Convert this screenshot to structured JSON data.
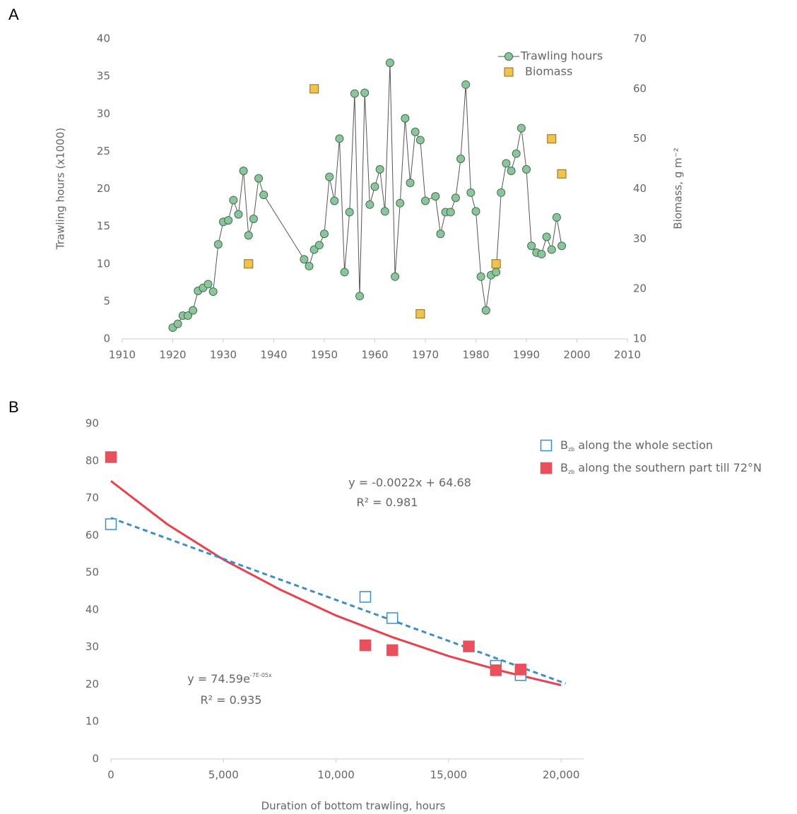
{
  "chart_data": [
    {
      "type": "line",
      "panel_label": "A",
      "y_label": "Trawling hours (x1000)",
      "y2_label": "Biomass, g m⁻²",
      "xlim": [
        1910,
        2010
      ],
      "xticks": [
        1910,
        1920,
        1930,
        1940,
        1950,
        1960,
        1970,
        1980,
        1990,
        2000,
        2010
      ],
      "ylim": [
        0,
        40
      ],
      "yticks": [
        0,
        5,
        10,
        15,
        20,
        25,
        30,
        35,
        40
      ],
      "y2lim": [
        10,
        70
      ],
      "y2ticks": [
        10,
        20,
        30,
        40,
        50,
        60,
        70
      ],
      "legend": "upper right",
      "series": [
        {
          "name": "Trawling hours",
          "color": "#8cc59b",
          "line_color": "#555555",
          "marker": "circle",
          "x": [
            1920,
            1921,
            1922,
            1923,
            1924,
            1925,
            1926,
            1927,
            1928,
            1929,
            1930,
            1931,
            1932,
            1933,
            1934,
            1935,
            1936,
            1937,
            1938,
            1946,
            1947,
            1948,
            1949,
            1950,
            1951,
            1952,
            1953,
            1954,
            1955,
            1956,
            1957,
            1958,
            1959,
            1960,
            1961,
            1962,
            1963,
            1964,
            1965,
            1966,
            1967,
            1968,
            1969,
            1970,
            1972,
            1973,
            1974,
            1975,
            1976,
            1977,
            1978,
            1979,
            1980,
            1981,
            1982,
            1983,
            1984,
            1985,
            1986,
            1987,
            1988,
            1989,
            1990,
            1991,
            1992,
            1993,
            1994,
            1995,
            1996,
            1997
          ],
          "values": [
            1.5,
            2.0,
            3.1,
            3.1,
            3.8,
            6.4,
            6.8,
            7.3,
            6.3,
            12.6,
            15.6,
            15.8,
            18.5,
            16.6,
            22.4,
            13.8,
            16.0,
            21.4,
            19.2,
            10.6,
            9.7,
            11.9,
            12.5,
            14.0,
            21.6,
            18.4,
            26.7,
            8.9,
            16.9,
            32.7,
            5.7,
            32.8,
            17.9,
            20.3,
            22.6,
            17.0,
            36.8,
            8.3,
            18.1,
            29.4,
            20.8,
            27.6,
            26.5,
            18.4,
            19.0,
            14.0,
            16.9,
            16.9,
            18.8,
            24.0,
            33.9,
            19.5,
            17.0,
            8.3,
            3.8,
            8.5,
            8.9,
            19.5,
            23.4,
            22.4,
            24.7,
            28.1,
            22.6,
            12.4,
            11.5,
            11.3,
            13.6,
            11.9,
            16.2,
            12.4
          ]
        },
        {
          "name": "Biomass",
          "color": "#f2c24f",
          "marker": "square",
          "axis": "y2",
          "x": [
            1935,
            1948,
            1969,
            1984,
            1995,
            1997
          ],
          "values": [
            25,
            60,
            15,
            25,
            50,
            43
          ]
        }
      ]
    },
    {
      "type": "scatter",
      "panel_label": "B",
      "x_label": "Duration of bottom trawling, hours",
      "xlim": [
        0,
        21000
      ],
      "xticks": [
        0,
        {
          "value": 5000,
          "label": "5,000"
        },
        {
          "value": 10000,
          "label": "10,000"
        },
        {
          "value": 15000,
          "label": "15,000"
        },
        {
          "value": 20000,
          "label": "20,000"
        }
      ],
      "ylim": [
        0,
        90
      ],
      "yticks": [
        0,
        10,
        20,
        30,
        40,
        50,
        60,
        70,
        80,
        90
      ],
      "legend": "upper right",
      "series": [
        {
          "name": [
            "B",
            "zb",
            "along the whole section"
          ],
          "color": "#3b8fc9",
          "filled": false,
          "x": [
            0,
            11300,
            12500,
            17100,
            18200
          ],
          "values": [
            63,
            43.5,
            37.8,
            25,
            22.5
          ]
        },
        {
          "name": [
            "B",
            "zb",
            "along the southern part till 72°N"
          ],
          "color": "#e9505c",
          "filled": true,
          "x": [
            0,
            11300,
            12500,
            15900,
            17100,
            18200
          ],
          "values": [
            81,
            30.5,
            29.2,
            30.2,
            23.8,
            24
          ]
        }
      ],
      "trendlines": [
        {
          "color": "#e8424e",
          "dashed": false,
          "x": [
            0,
            2500,
            5000,
            7500,
            10000,
            12500,
            15000,
            17500,
            20000
          ],
          "values": [
            74.6,
            63,
            53.5,
            45.5,
            38.5,
            32.7,
            27.6,
            23.4,
            19.8
          ]
        },
        {
          "color": "#3b8fc9",
          "dashed": true,
          "x": [
            0,
            20200
          ],
          "values": [
            64.68,
            20.24
          ]
        }
      ],
      "annotations": [
        {
          "text": "y = -0.0022x + 64.68"
        },
        {
          "text": "R² = 0.981"
        },
        {
          "text": "y = 74.59e",
          "sup": "-7E-05x"
        },
        {
          "text": "R² = 0.935"
        }
      ]
    }
  ]
}
